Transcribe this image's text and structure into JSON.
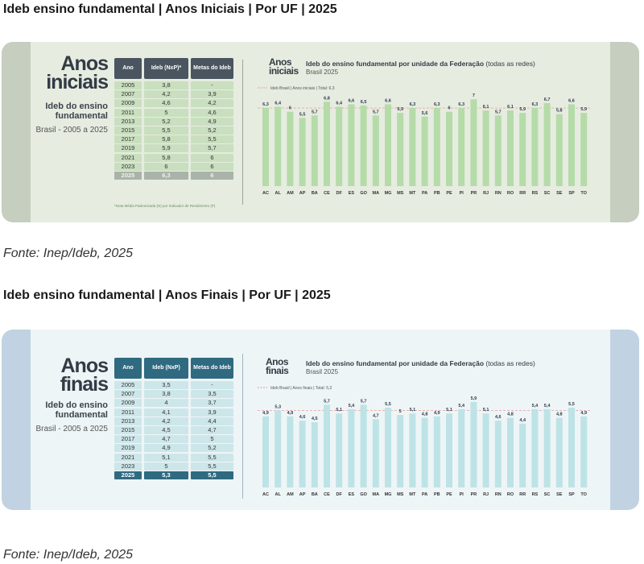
{
  "sections": [
    {
      "heading": "Ideb ensino fundamental | Anos Iniciais | Por UF | 2025",
      "title_lines": [
        "Anos",
        "iniciais"
      ],
      "subtitle_lines": [
        "Ideb do ensino",
        "fundamental"
      ],
      "range": "Brasil - 2005 a 2025",
      "table": {
        "headers": [
          "Ano",
          "Ideb (NxP)*",
          "Metas do Ideb"
        ],
        "rows": [
          [
            "2005",
            "3,8",
            "-"
          ],
          [
            "2007",
            "4,2",
            "3,9"
          ],
          [
            "2009",
            "4,6",
            "4,2"
          ],
          [
            "2011",
            "5",
            "4,6"
          ],
          [
            "2013",
            "5,2",
            "4,9"
          ],
          [
            "2015",
            "5,5",
            "5,2"
          ],
          [
            "2017",
            "5,8",
            "5,5"
          ],
          [
            "2019",
            "5,9",
            "5,7"
          ],
          [
            "2021",
            "5,8",
            "6"
          ],
          [
            "2023",
            "6",
            "6"
          ],
          [
            "2025",
            "6,3",
            "6"
          ]
        ]
      },
      "footnote": "*Nota Média Padronizada (N) por Indicador de Rendimento (P)",
      "chart_title_lines": [
        "Anos",
        "iniciais"
      ],
      "chart_main_bold": "Ideb  do ensino fundamental por unidade da Federação",
      "chart_main_rest": " (todas as redes)",
      "chart_sub": "Brasil 2025",
      "legend": "Ideb Brasil  |  Anos iniciais  |  Total: 6,3",
      "fonte": "Fonte: Inep/Ideb, 2025",
      "colors": {
        "bar": "#b5dba9",
        "value": "#2e3a4a",
        "ref": "#e8a9a9"
      },
      "chart_data": {
        "type": "bar",
        "categories": [
          "AC",
          "AL",
          "AM",
          "AP",
          "BA",
          "CE",
          "DF",
          "ES",
          "GO",
          "MA",
          "MG",
          "MS",
          "MT",
          "PA",
          "PB",
          "PE",
          "PI",
          "PR",
          "RJ",
          "RN",
          "RO",
          "RR",
          "RS",
          "SC",
          "SE",
          "SP",
          "TO"
        ],
        "values": [
          6.3,
          6.4,
          6,
          5.5,
          5.7,
          6.8,
          6.4,
          6.6,
          6.5,
          5.7,
          6.6,
          5.9,
          6.3,
          5.6,
          6.3,
          6,
          6.3,
          7,
          6.1,
          5.7,
          6.1,
          5.9,
          6.3,
          6.7,
          5.8,
          6.6,
          5.9
        ],
        "labels": [
          "6,3",
          "6,4",
          "6",
          "5,5",
          "5,7",
          "6,8",
          "6,4",
          "6,6",
          "6,5",
          "5,7",
          "6,6",
          "5,9",
          "6,3",
          "5,6",
          "6,3",
          "6",
          "6,3",
          "7",
          "6,1",
          "5,7",
          "6,1",
          "5,9",
          "6,3",
          "6,7",
          "5,8",
          "6,6",
          "5,9"
        ],
        "reference_line": 6.3,
        "ylim": [
          0,
          7.6
        ]
      }
    },
    {
      "heading": "Ideb ensino fundamental | Anos Finais | Por UF | 2025",
      "title_lines": [
        "Anos",
        "finais"
      ],
      "subtitle_lines": [
        "Ideb do ensino",
        "fundamental"
      ],
      "range": "Brasil - 2005 a 2025",
      "table": {
        "headers": [
          "Ano",
          "Ideb (NxP)",
          "Metas do Ideb"
        ],
        "rows": [
          [
            "2005",
            "3,5",
            "-"
          ],
          [
            "2007",
            "3,8",
            "3,5"
          ],
          [
            "2009",
            "4",
            "3,7"
          ],
          [
            "2011",
            "4,1",
            "3,9"
          ],
          [
            "2013",
            "4,2",
            "4,4"
          ],
          [
            "2015",
            "4,5",
            "4,7"
          ],
          [
            "2017",
            "4,7",
            "5"
          ],
          [
            "2019",
            "4,9",
            "5,2"
          ],
          [
            "2021",
            "5,1",
            "5,5"
          ],
          [
            "2023",
            "5",
            "5,5"
          ],
          [
            "2025",
            "5,3",
            "5,5"
          ]
        ]
      },
      "footnote": "",
      "chart_title_lines": [
        "Anos",
        "finais"
      ],
      "chart_main_bold": "Ideb  do ensino fundamental por unidade da Federação",
      "chart_main_rest": " (todas as redes)",
      "chart_sub": "Brasil 2025",
      "legend": "Ideb Brasil  |  Anos finais  |  Total: 5,3",
      "fonte": "Fonte: Inep/Ideb, 2025",
      "colors": {
        "bar": "#bde3e6",
        "value": "#2e3a4a",
        "ref": "#e8a9a9"
      },
      "chart_data": {
        "type": "bar",
        "categories": [
          "AC",
          "AL",
          "AM",
          "AP",
          "BA",
          "CE",
          "DF",
          "ES",
          "GO",
          "MA",
          "MG",
          "MS",
          "MT",
          "PA",
          "PB",
          "PE",
          "PI",
          "PR",
          "RJ",
          "RN",
          "RO",
          "RR",
          "RS",
          "SC",
          "SE",
          "SP",
          "TO"
        ],
        "values": [
          4.9,
          5.3,
          4.9,
          4.6,
          4.5,
          5.7,
          5.1,
          5.4,
          5.7,
          4.7,
          5.5,
          5,
          5.1,
          4.8,
          4.9,
          5.1,
          5.4,
          5.9,
          5.1,
          4.6,
          4.8,
          4.4,
          5.4,
          5.4,
          4.8,
          5.5,
          4.9
        ],
        "labels": [
          "4,9",
          "5,3",
          "4,9",
          "4,6",
          "4,5",
          "5,7",
          "5,1",
          "5,4",
          "5,7",
          "4,7",
          "5,5",
          "5",
          "5,1",
          "4,8",
          "4,9",
          "5,1",
          "5,4",
          "5,9",
          "5,1",
          "4,6",
          "4,8",
          "4,4",
          "5,4",
          "5,4",
          "4,8",
          "5,5",
          "4,9"
        ],
        "reference_line": 5.3,
        "ylim": [
          0,
          6.5
        ]
      }
    }
  ]
}
